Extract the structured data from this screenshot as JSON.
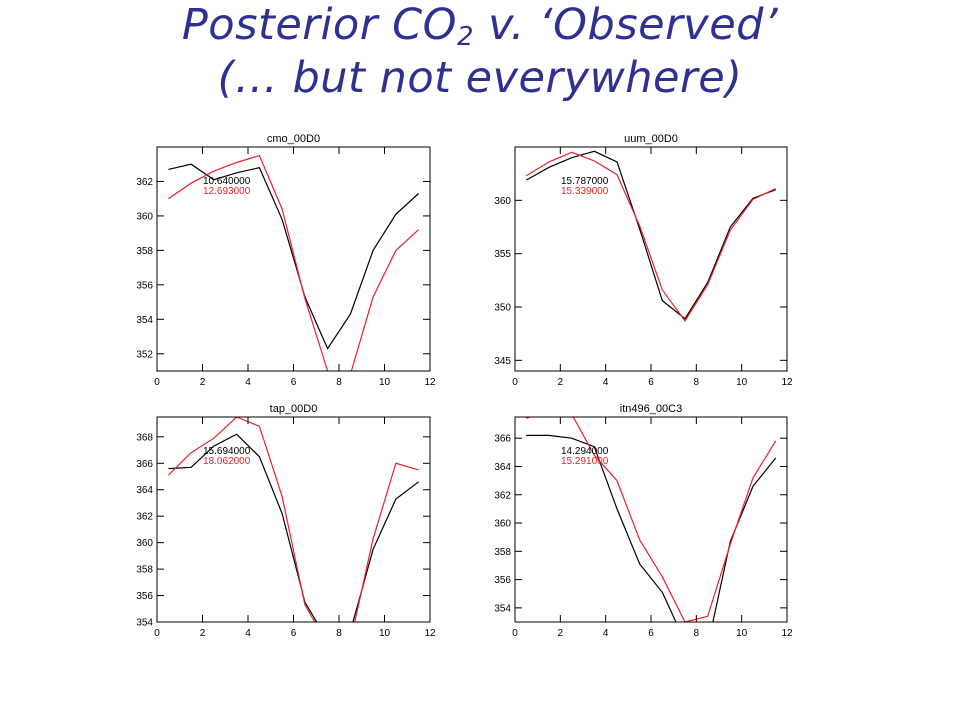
{
  "slide": {
    "title_line1_pre": "Posterior CO",
    "title_line1_sub": "2",
    "title_line1_post": " v. ‘Observed’",
    "title_line2": "(… but not everywhere)"
  },
  "colors": {
    "title": "#2e3192",
    "posterior": "#000000",
    "observed": "#e8232a"
  },
  "chart_data": [
    {
      "type": "line",
      "title": "cmo_00D0",
      "xlim": [
        0,
        12
      ],
      "ylim": [
        351,
        364
      ],
      "xticks": [
        0,
        2,
        4,
        6,
        8,
        10,
        12
      ],
      "yticks": [
        352,
        354,
        356,
        358,
        360,
        362
      ],
      "annotations": [
        "10.640000",
        "12.693000"
      ],
      "series": [
        {
          "color": "#000000",
          "x": [
            0.5,
            1.5,
            2.5,
            3.5,
            4.5,
            5.5,
            6.5,
            7.5,
            8.5,
            9.5,
            10.5,
            11.5
          ],
          "values": [
            362.7,
            363.0,
            362.1,
            362.5,
            362.8,
            359.8,
            355.3,
            352.3,
            354.3,
            358.0,
            360.1,
            361.3
          ]
        },
        {
          "color": "#e8232a",
          "x": [
            0.5,
            1.5,
            2.5,
            3.5,
            4.5,
            5.5,
            6.5,
            7.5,
            8.5,
            9.5,
            10.5,
            11.5
          ],
          "values": [
            361.0,
            361.9,
            362.6,
            363.1,
            363.5,
            360.4,
            355.2,
            351.0,
            350.8,
            355.3,
            358.0,
            359.2
          ]
        }
      ]
    },
    {
      "type": "line",
      "title": "uum_00D0",
      "xlim": [
        0,
        12
      ],
      "ylim": [
        344,
        365
      ],
      "xticks": [
        0,
        2,
        4,
        6,
        8,
        10,
        12
      ],
      "yticks": [
        345,
        350,
        355,
        360
      ],
      "annotations": [
        "15.787000",
        "15.339000"
      ],
      "series": [
        {
          "color": "#000000",
          "x": [
            0.5,
            1.5,
            2.5,
            3.5,
            4.5,
            5.5,
            6.5,
            7.5,
            8.5,
            9.5,
            10.5,
            11.5
          ],
          "values": [
            361.9,
            363.1,
            364.0,
            364.6,
            363.6,
            357.3,
            350.6,
            348.9,
            352.3,
            357.5,
            360.2,
            361.0
          ]
        },
        {
          "color": "#e8232a",
          "x": [
            0.5,
            1.5,
            2.5,
            3.5,
            4.5,
            5.5,
            6.5,
            7.5,
            8.5,
            9.5,
            10.5,
            11.5
          ],
          "values": [
            362.3,
            363.6,
            364.5,
            363.7,
            362.4,
            357.6,
            351.6,
            348.7,
            352.1,
            357.2,
            360.1,
            361.1
          ]
        }
      ]
    },
    {
      "type": "line",
      "title": "tap_00D0",
      "xlim": [
        0,
        12
      ],
      "ylim": [
        354,
        369.5
      ],
      "xticks": [
        0,
        2,
        4,
        6,
        8,
        10,
        12
      ],
      "yticks": [
        354,
        356,
        358,
        360,
        362,
        364,
        366,
        368
      ],
      "annotations": [
        "15.694000",
        "18.062000"
      ],
      "series": [
        {
          "color": "#000000",
          "x": [
            0.5,
            1.5,
            2.5,
            3.5,
            4.5,
            5.5,
            6.5,
            7.5,
            8.5,
            9.5,
            10.5,
            11.5
          ],
          "values": [
            365.6,
            365.7,
            367.3,
            368.2,
            366.5,
            362.2,
            355.5,
            352.6,
            353.3,
            359.5,
            363.3,
            364.6
          ]
        },
        {
          "color": "#e8232a",
          "x": [
            0.5,
            1.5,
            2.5,
            3.5,
            4.5,
            5.5,
            6.5,
            7.5,
            8.5,
            9.5,
            10.5,
            11.5
          ],
          "values": [
            365.1,
            366.8,
            367.9,
            369.5,
            368.8,
            363.5,
            355.3,
            352.3,
            352.5,
            360.3,
            366.0,
            365.5
          ]
        }
      ]
    },
    {
      "type": "line",
      "title": "itn496_00C3",
      "xlim": [
        0,
        12
      ],
      "ylim": [
        353,
        367.5
      ],
      "xticks": [
        0,
        2,
        4,
        6,
        8,
        10,
        12
      ],
      "yticks": [
        354,
        356,
        358,
        360,
        362,
        364,
        366
      ],
      "annotations": [
        "14.294000",
        "15.291000"
      ],
      "series": [
        {
          "color": "#000000",
          "x": [
            0.5,
            1.5,
            2.5,
            3.5,
            4.5,
            5.5,
            6.5,
            7.5,
            8.5,
            9.5,
            10.5,
            11.5
          ],
          "values": [
            366.2,
            366.2,
            366.0,
            365.4,
            361.0,
            357.1,
            355.1,
            351.6,
            351.3,
            358.7,
            362.6,
            364.6
          ]
        },
        {
          "color": "#e8232a",
          "x": [
            0.5,
            1.5,
            2.5,
            3.5,
            4.5,
            5.5,
            6.5,
            7.5,
            8.5,
            9.5,
            10.5,
            11.5
          ],
          "values": [
            367.4,
            368.0,
            367.7,
            364.8,
            363.0,
            358.8,
            356.2,
            353.0,
            353.4,
            358.5,
            363.2,
            365.8
          ]
        }
      ]
    }
  ]
}
